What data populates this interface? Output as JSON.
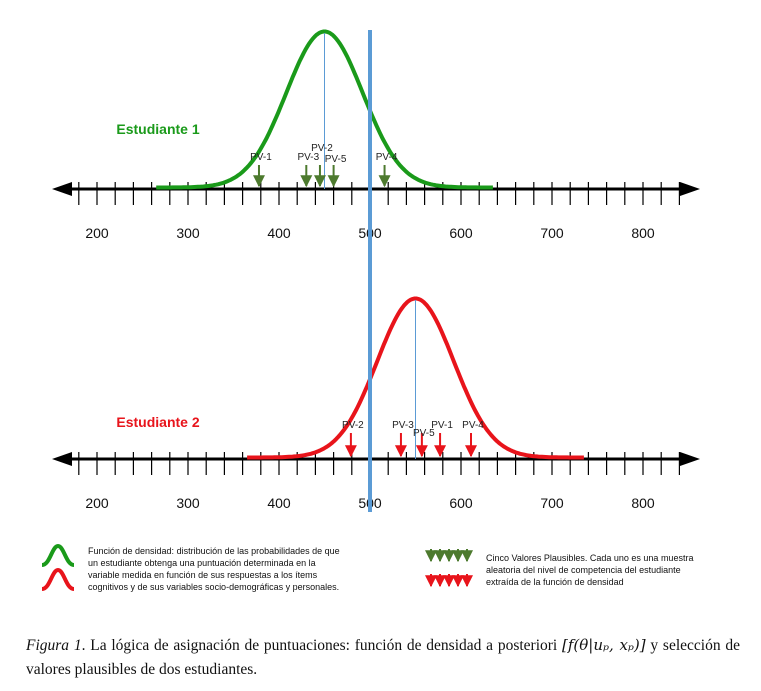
{
  "axis": {
    "ticks": [
      "200",
      "300",
      "400",
      "500",
      "600",
      "700",
      "800"
    ],
    "tick_values": [
      200,
      300,
      400,
      500,
      600,
      700,
      800
    ],
    "range": [
      150,
      850
    ],
    "minor_step": 20
  },
  "cutoff_value": 500,
  "students": [
    {
      "label": "Estudiante 1",
      "color": "#1a9a1a",
      "mean": 450,
      "sd": 42,
      "curve_range": [
        265,
        635
      ],
      "plausible_values": [
        {
          "label": "PV-1",
          "value": 378
        },
        {
          "label": "PV-2",
          "value": 445
        },
        {
          "label": "PV-3",
          "value": 430
        },
        {
          "label": "PV-5",
          "value": 460
        },
        {
          "label": "PV-4",
          "value": 516
        }
      ]
    },
    {
      "label": "Estudiante 2",
      "color": "#e8141b",
      "mean": 550,
      "sd": 42,
      "curve_range": [
        365,
        735
      ],
      "plausible_values": [
        {
          "label": "PV-2",
          "value": 479
        },
        {
          "label": "PV-3",
          "value": 534
        },
        {
          "label": "PV-5",
          "value": 557
        },
        {
          "label": "PV-1",
          "value": 577
        },
        {
          "label": "PV-4",
          "value": 611
        }
      ]
    }
  ],
  "legend": {
    "density_lines": [
      "Función de densidad: distribución de las probabilidades de que",
      "un estudiante obtenga una puntuación determinada en la",
      "variable medida en función de sus respuestas a los ítems",
      "cognitivos y de sus variables socio-demográficas y personales."
    ],
    "pv_lines": [
      "Cinco Valores Plausibles. Cada uno es una muestra",
      "aleatoria del nivel de competencia del estudiante",
      "extraída de la función de densidad"
    ]
  },
  "caption": {
    "figure_number": "Figura 1",
    "text": ". La lógica de asignación de puntuaciones: función de densidad a posteriori",
    "formula": "[f(θ|uₚ, xₚ)]",
    "text2": " y selección de valores plausibles de dos estudiantes."
  }
}
